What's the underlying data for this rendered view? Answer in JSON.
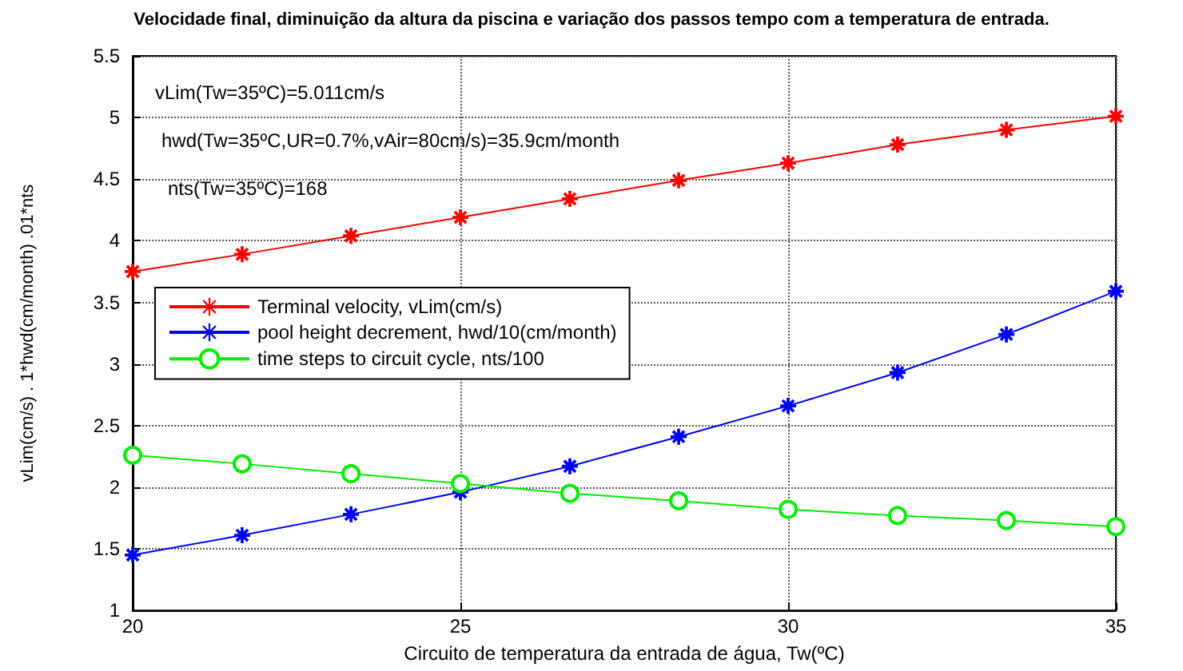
{
  "chart_data": {
    "type": "line",
    "title": "Velocidade final, diminuição da altura da piscina e variação dos passos tempo com a temperatura de entrada.",
    "xlabel": "Circuito de temperatura da entrada de água, Tw(ºC)",
    "ylabel": "vLim(cm/s) . 1*hwd(cm/month) .01*nts",
    "x": [
      20,
      21.67,
      23.33,
      25,
      26.67,
      28.33,
      30,
      31.67,
      33.33,
      35
    ],
    "series": [
      {
        "name": "Terminal velocity, vLim(cm/s)",
        "color": "#ff0000",
        "marker": "star",
        "values": [
          3.75,
          3.89,
          4.04,
          4.19,
          4.34,
          4.49,
          4.63,
          4.78,
          4.9,
          5.01
        ]
      },
      {
        "name": "pool height decrement, hwd/10(cm/month)",
        "color": "#0000ff",
        "marker": "star",
        "values": [
          1.45,
          1.61,
          1.78,
          1.96,
          2.17,
          2.41,
          2.66,
          2.93,
          3.24,
          3.59
        ]
      },
      {
        "name": "time steps to circuit cycle, nts/100",
        "color": "#00ee00",
        "marker": "circle",
        "values": [
          2.26,
          2.19,
          2.11,
          2.03,
          1.95,
          1.89,
          1.82,
          1.77,
          1.73,
          1.68
        ]
      }
    ],
    "annotations": [
      "vLim(Tw=35ºC)=5.011cm/s",
      "hwd(Tw=35ºC,UR=0.7%,vAir=80cm/s)=35.9cm/month",
      "nts(Tw=35ºC)=168"
    ],
    "xlim": [
      20,
      35
    ],
    "xticks": [
      20,
      25,
      30,
      35
    ],
    "ylim": [
      1,
      5.5
    ],
    "yticks": [
      1,
      1.5,
      2,
      2.5,
      3,
      3.5,
      4,
      4.5,
      5,
      5.5
    ],
    "grid": true,
    "legend": "left",
    "line_style": "solid"
  }
}
